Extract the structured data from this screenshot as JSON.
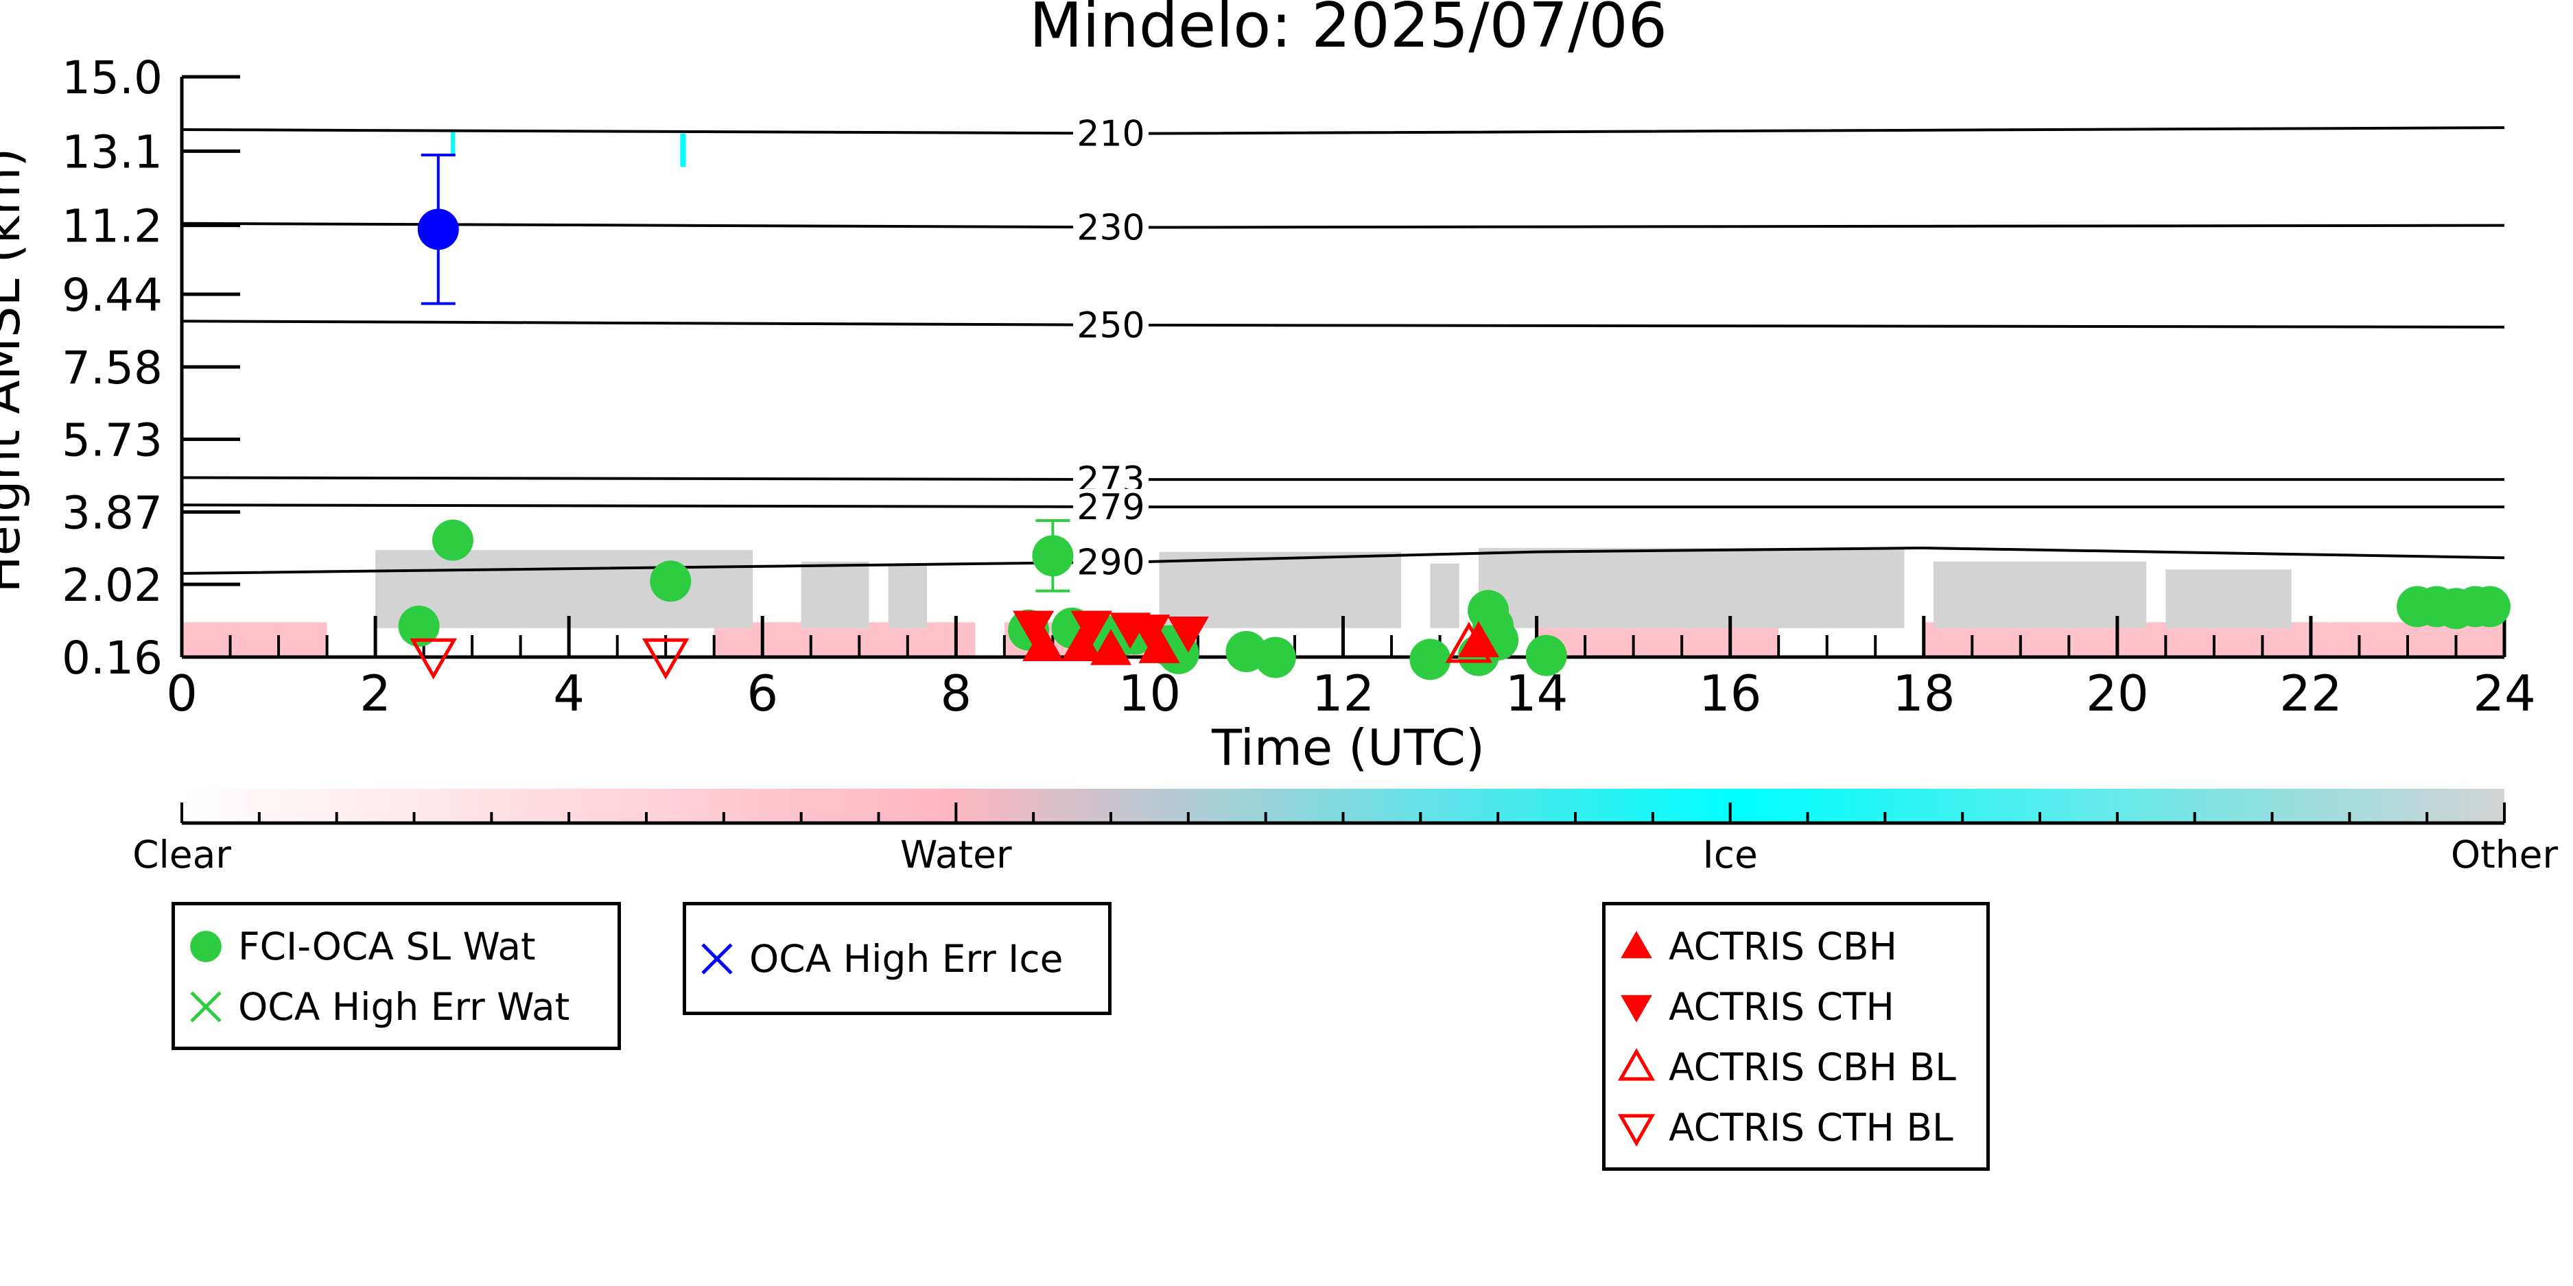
{
  "chart_data": {
    "type": "scatter",
    "title": "Mindelo: 2025/07/06",
    "xlabel": "Time (UTC)",
    "ylabel": "Height AMSL (km)",
    "xlim": [
      0,
      24
    ],
    "ylim": [
      0.16,
      15.0
    ],
    "x_ticks": [
      "0",
      "2",
      "4",
      "6",
      "8",
      "10",
      "12",
      "14",
      "16",
      "18",
      "20",
      "22",
      "24"
    ],
    "y_ticks": [
      "0.16",
      "2.02",
      "3.87",
      "5.73",
      "7.58",
      "9.44",
      "11.2",
      "13.1",
      "15.0"
    ],
    "colorbar": {
      "labels": [
        "Clear",
        "Water",
        "Ice",
        "Other"
      ],
      "colors": [
        "#ffffff",
        "#ffb6c1",
        "#00ffff",
        "#d3d3d3"
      ]
    },
    "contours": [
      {
        "label": "210",
        "values": [
          [
            0,
            13.65
          ],
          [
            10,
            13.55
          ],
          [
            24,
            13.7
          ]
        ]
      },
      {
        "label": "230",
        "values": [
          [
            0,
            11.25
          ],
          [
            10,
            11.15
          ],
          [
            24,
            11.2
          ]
        ]
      },
      {
        "label": "250",
        "values": [
          [
            0,
            8.75
          ],
          [
            10,
            8.65
          ],
          [
            24,
            8.6
          ]
        ]
      },
      {
        "label": "273",
        "values": [
          [
            0,
            4.75
          ],
          [
            10,
            4.7
          ],
          [
            24,
            4.7
          ]
        ]
      },
      {
        "label": "279",
        "values": [
          [
            0,
            4.05
          ],
          [
            10,
            4.0
          ],
          [
            24,
            4.0
          ]
        ]
      },
      {
        "label": "290",
        "values": [
          [
            0,
            2.3
          ],
          [
            10,
            2.6
          ],
          [
            14,
            2.85
          ],
          [
            18,
            2.95
          ],
          [
            24,
            2.7
          ]
        ]
      }
    ],
    "series": [
      {
        "name": "FCI-OCA SL Wat",
        "color": "#2ecc40",
        "marker": "circle",
        "points": [
          {
            "x": 2.45,
            "y": 0.95,
            "xerr": 0.15
          },
          {
            "x": 2.8,
            "y": 3.15,
            "xerr": 0.15
          },
          {
            "x": 5.05,
            "y": 2.1,
            "xerr": 0.1
          },
          {
            "x": 9.0,
            "y": 2.75,
            "yerr": 0.9
          },
          {
            "x": 8.75,
            "y": 0.85
          },
          {
            "x": 9.2,
            "y": 0.9
          },
          {
            "x": 9.5,
            "y": 0.75
          },
          {
            "x": 9.7,
            "y": 0.7
          },
          {
            "x": 9.85,
            "y": 0.75
          },
          {
            "x": 10.2,
            "y": 0.45
          },
          {
            "x": 10.3,
            "y": 0.25
          },
          {
            "x": 11.0,
            "y": 0.3
          },
          {
            "x": 11.3,
            "y": 0.15
          },
          {
            "x": 12.9,
            "y": 0.1
          },
          {
            "x": 13.4,
            "y": 0.2
          },
          {
            "x": 13.5,
            "y": 1.35
          },
          {
            "x": 13.55,
            "y": 0.95
          },
          {
            "x": 13.6,
            "y": 0.6
          },
          {
            "x": 14.1,
            "y": 0.2
          },
          {
            "x": 23.1,
            "y": 1.45
          },
          {
            "x": 23.3,
            "y": 1.45
          },
          {
            "x": 23.5,
            "y": 1.4
          },
          {
            "x": 23.7,
            "y": 1.45
          },
          {
            "x": 23.85,
            "y": 1.45
          }
        ]
      },
      {
        "name": "OCA High Err Wat",
        "color": "#2ecc40",
        "marker": "x",
        "points": []
      },
      {
        "name": "OCA High Err Ice",
        "color": "#0000ff",
        "marker": "x",
        "points": [
          {
            "x": 2.65,
            "y": 11.1,
            "yerr": 1.9
          }
        ]
      },
      {
        "name": "ACTRIS CBH",
        "color": "#ff0000",
        "marker": "triangle-up",
        "points": [
          {
            "x": 8.9,
            "y": 0.45
          },
          {
            "x": 9.3,
            "y": 0.45
          },
          {
            "x": 9.6,
            "y": 0.35
          },
          {
            "x": 10.1,
            "y": 0.4
          },
          {
            "x": 13.4,
            "y": 0.55
          }
        ]
      },
      {
        "name": "ACTRIS CTH",
        "color": "#ff0000",
        "marker": "triangle-down",
        "points": [
          {
            "x": 8.8,
            "y": 0.95
          },
          {
            "x": 9.4,
            "y": 0.95
          },
          {
            "x": 9.8,
            "y": 0.9
          },
          {
            "x": 10.0,
            "y": 0.85
          },
          {
            "x": 10.4,
            "y": 0.8
          }
        ]
      },
      {
        "name": "ACTRIS CBH BL",
        "color": "#ff0000",
        "marker": "triangle-up-open",
        "points": [
          {
            "x": 13.3,
            "y": 0.45
          }
        ]
      },
      {
        "name": "ACTRIS CTH BL",
        "color": "#ff0000",
        "marker": "triangle-down-open",
        "points": [
          {
            "x": 2.6,
            "y": 0.2
          },
          {
            "x": 5.0,
            "y": 0.2
          }
        ]
      }
    ],
    "legend": {
      "groups": [
        [
          "FCI-OCA SL Wat",
          "OCA High Err Wat"
        ],
        [
          "OCA High Err Ice"
        ],
        [
          "ACTRIS CBH",
          "ACTRIS CTH",
          "ACTRIS CBH BL",
          "ACTRIS CTH BL"
        ]
      ],
      "placement": "below"
    }
  }
}
